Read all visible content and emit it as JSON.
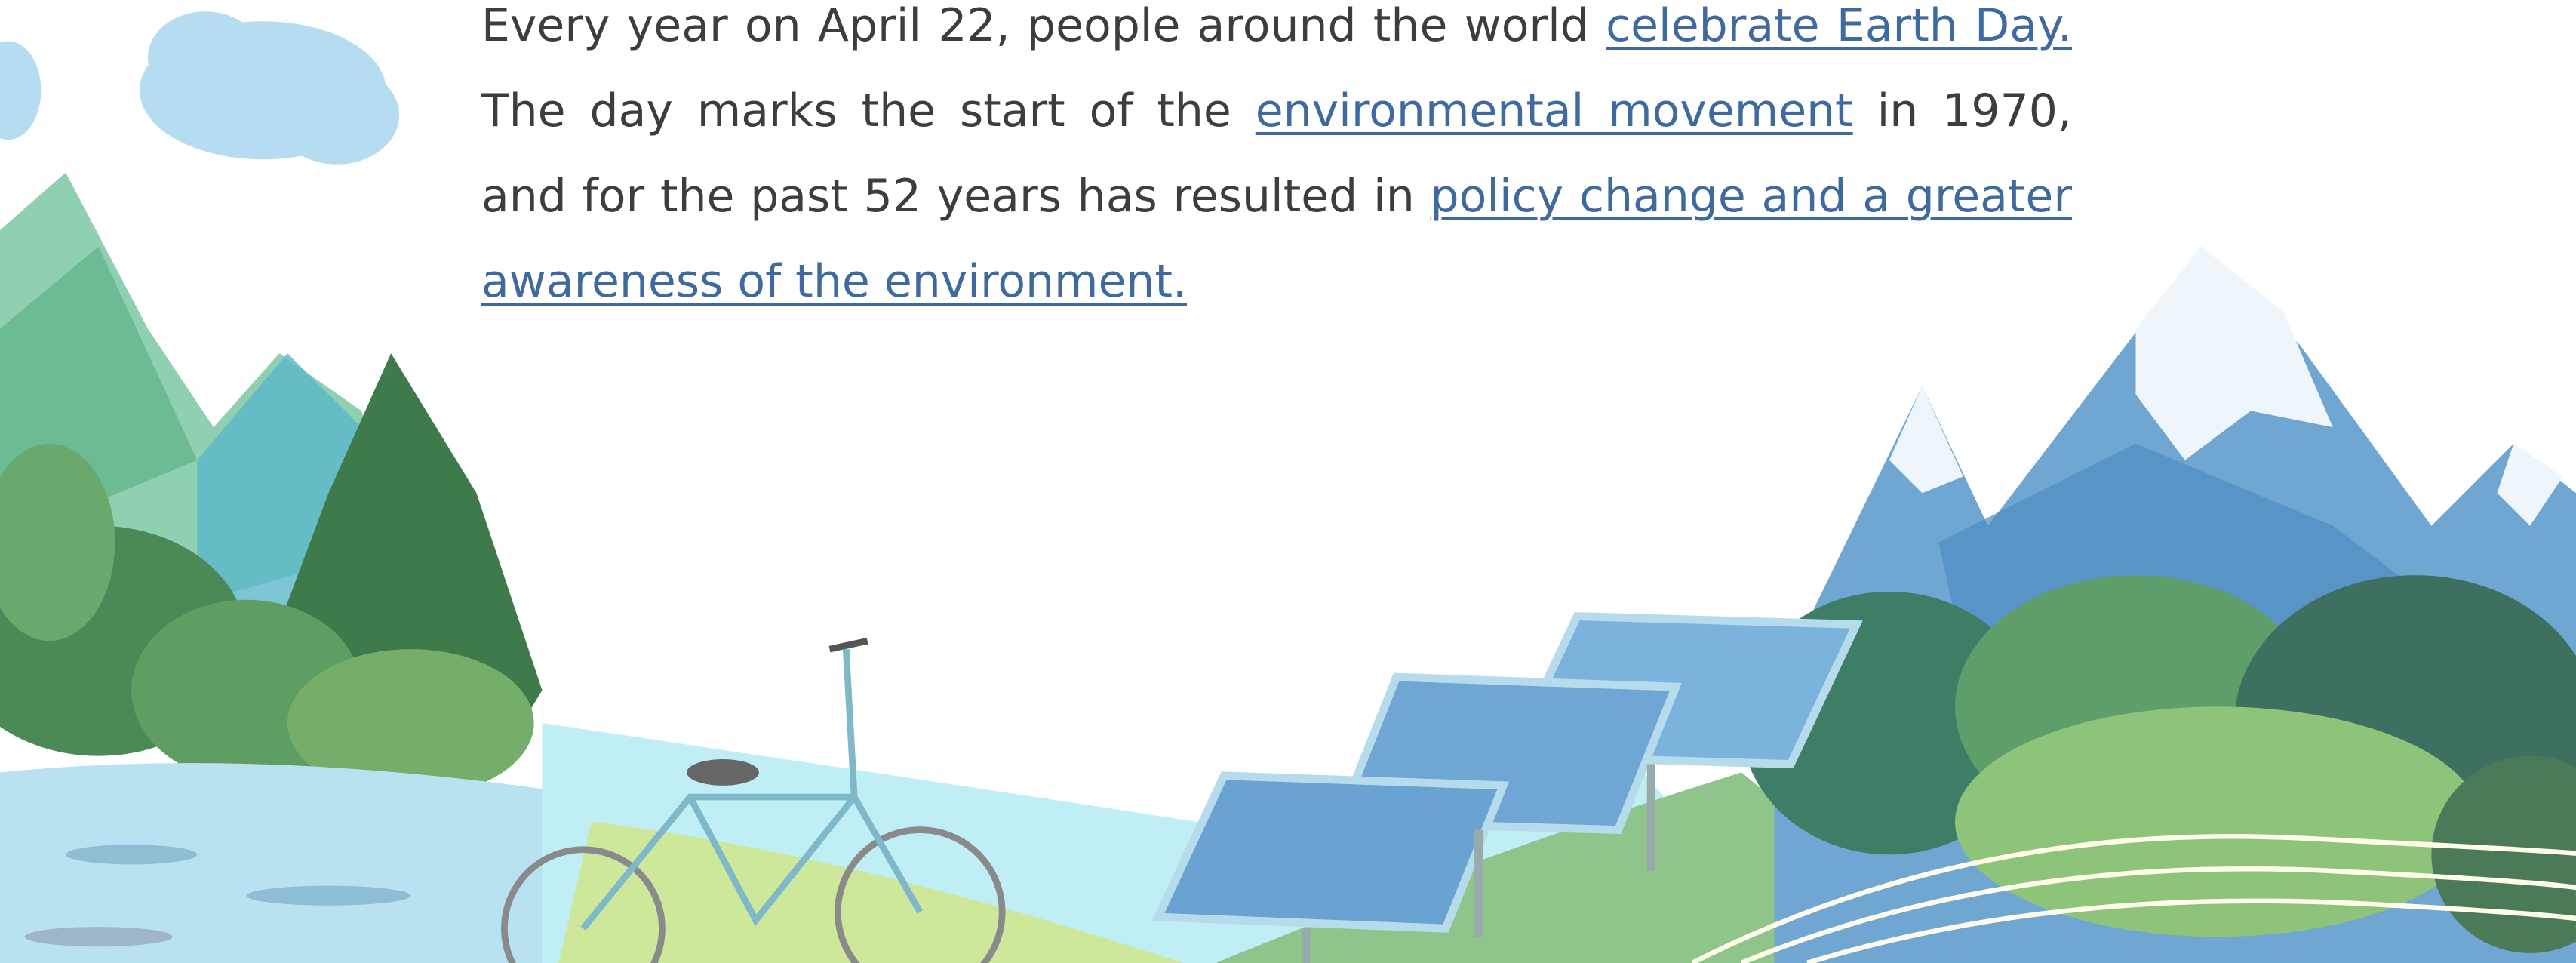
{
  "paragraph": [
    "Every year on April 22, people around the world",
    "celebrate Earth Day.",
    "The day marks the start of the",
    "environmental movement",
    "in 1970, and for the past 52 years has resulted in",
    "policy change and a greater awareness of the environment."
  ]
}
